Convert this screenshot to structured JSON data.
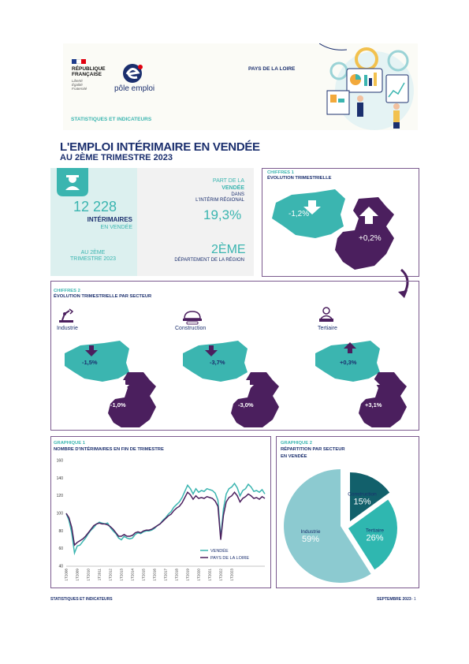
{
  "header": {
    "republic_line1": "RÉPUBLIQUE",
    "republic_line2": "FRANÇAISE",
    "motto": [
      "Liberté",
      "Égalité",
      "Fraternité"
    ],
    "org_name": "pôle emploi",
    "region": "PAYS DE LA LOIRE",
    "section": "STATISTIQUES ET INDICATEURS"
  },
  "title": {
    "line1": "L'EMPLOI INTÉRIMAIRE EN VENDÉE",
    "line2": "AU 2ÈME TRIMESTRE 2023"
  },
  "kpi": {
    "count": "12 228",
    "count_label": "INTÉRIMAIRES",
    "count_sub": "EN VENDÉE",
    "period_line1": "AU 2ÈME",
    "period_line2": "TRIMESTRE 2023",
    "share_line1": "PART DE LA",
    "share_line2": "VENDÉE",
    "share_line3": "DANS",
    "share_line4": "L'INTÉRIM RÉGIONAL",
    "share_value": "19,3%",
    "rank_value": "2ÈME",
    "rank_label": "DÉPARTEMENT DE LA RÉGION"
  },
  "chiffres1": {
    "label": "CHIFFRES 1",
    "title": "ÉVOLUTION TRIMESTRIELLE",
    "vendee_value": "-1,2%",
    "region_value": "+0,2%"
  },
  "chiffres2": {
    "label": "CHIFFRES 2",
    "title": "ÉVOLUTION TRIMESTRIELLE PAR SECTEUR",
    "sectors": [
      {
        "name": "Industrie",
        "vendee": "-1,5%",
        "region": "-1,0%",
        "vendee_dir": "down",
        "region_dir": "down"
      },
      {
        "name": "Construction",
        "vendee": "-3,7%",
        "region": "-3,0%",
        "vendee_dir": "down",
        "region_dir": "down"
      },
      {
        "name": "Tertiaire",
        "vendee": "+0,3%",
        "region": "+3,1%",
        "vendee_dir": "up",
        "region_dir": "up"
      }
    ]
  },
  "graphique1": {
    "label": "GRAPHIQUE 1",
    "title": "NOMBRE D'INTÉRIMAIRES EN FIN DE TRIMESTRE"
  },
  "graphique2": {
    "label": "GRAPHIQUE 2",
    "title_line1": "RÉPARTITION PAR SECTEUR",
    "title_line2": "EN VENDÉE"
  },
  "chart_data": [
    {
      "type": "line",
      "title": "NOMBRE D'INTÉRIMAIRES EN FIN DE TRIMESTRE",
      "xlabel": "",
      "ylabel": "",
      "ylim": [
        40,
        160
      ],
      "yticks": [
        40,
        60,
        80,
        100,
        120,
        140,
        160
      ],
      "xticks": [
        "1T2008",
        "1T2009",
        "1T2010",
        "1T2011",
        "1T2012",
        "1T2013",
        "1T2014",
        "1T2015",
        "1T2016",
        "1T2017",
        "1T2018",
        "1T2019",
        "1T2020",
        "1T2021",
        "1T2022",
        "1T2023"
      ],
      "legend_position": "bottom-right",
      "grid": false,
      "series": [
        {
          "name": "VENDÉE",
          "color": "#3bb5b0",
          "values": [
            100,
            92,
            78,
            55,
            63,
            64,
            68,
            72,
            77,
            81,
            84,
            88,
            90,
            89,
            88,
            89,
            84,
            80,
            77,
            72,
            70,
            74,
            72,
            71,
            72,
            76,
            78,
            77,
            79,
            80,
            80,
            81,
            83,
            86,
            88,
            92,
            95,
            99,
            102,
            107,
            110,
            113,
            118,
            125,
            132,
            128,
            122,
            128,
            124,
            126,
            125,
            128,
            127,
            126,
            123,
            115,
            72,
            105,
            122,
            128,
            130,
            134,
            129,
            120,
            126,
            128,
            133,
            130,
            125,
            126,
            124,
            127,
            122
          ]
        },
        {
          "name": "PAYS DE LA LOIRE",
          "color": "#4b1f5e",
          "values": [
            100,
            95,
            84,
            64,
            67,
            69,
            71,
            74,
            78,
            82,
            86,
            88,
            89,
            88,
            88,
            87,
            85,
            82,
            78,
            74,
            74,
            76,
            74,
            74,
            75,
            78,
            79,
            78,
            80,
            81,
            81,
            82,
            84,
            86,
            88,
            91,
            94,
            97,
            99,
            103,
            106,
            108,
            112,
            118,
            124,
            121,
            116,
            120,
            117,
            118,
            117,
            119,
            118,
            117,
            114,
            108,
            70,
            98,
            113,
            118,
            120,
            124,
            120,
            113,
            117,
            119,
            122,
            120,
            117,
            118,
            116,
            119,
            117
          ]
        }
      ]
    },
    {
      "type": "pie",
      "title": "RÉPARTITION PAR SECTEUR EN VENDÉE",
      "slices": [
        {
          "label": "Industrie",
          "value": 59,
          "display": "59%",
          "color": "#8ccad0"
        },
        {
          "label": "Construction",
          "value": 15,
          "display": "15%",
          "color": "#12606b"
        },
        {
          "label": "Tertiaire",
          "value": 26,
          "display": "26%",
          "color": "#2fb7b0"
        }
      ]
    }
  ],
  "footer": {
    "left": "STATISTIQUES ET INDICATEURS",
    "right": "SEPTEMBRE 2023",
    "page": "- 1"
  },
  "colors": {
    "navy": "#1b2f6e",
    "teal": "#3bb5b0",
    "plum": "#4b1f5e"
  }
}
